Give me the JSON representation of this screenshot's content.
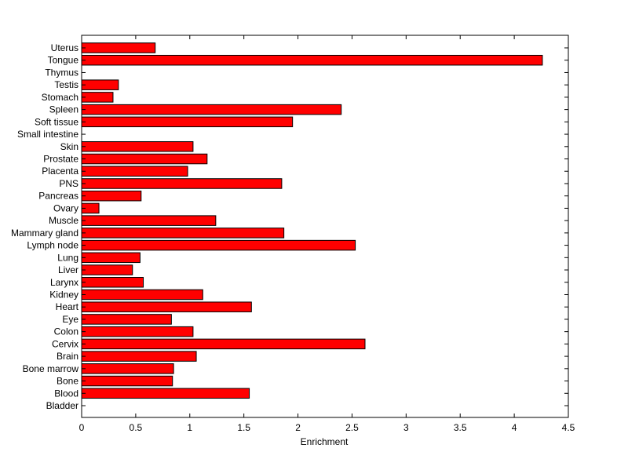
{
  "chart_data": {
    "type": "bar",
    "orientation": "horizontal",
    "title": "",
    "xlabel": "Enrichment",
    "ylabel": "",
    "xlim": [
      0,
      4.5
    ],
    "xticks": [
      0,
      0.5,
      1,
      1.5,
      2,
      2.5,
      3,
      3.5,
      4,
      4.5
    ],
    "grid": false,
    "legend": "none",
    "bar_color": "#ff0000",
    "bar_edge_color": "#000000",
    "categories": [
      "Uterus",
      "Tongue",
      "Thymus",
      "Testis",
      "Stomach",
      "Spleen",
      "Soft tissue",
      "Small intestine",
      "Skin",
      "Prostate",
      "Placenta",
      "PNS",
      "Pancreas",
      "Ovary",
      "Muscle",
      "Mammary gland",
      "Lymph node",
      "Lung",
      "Liver",
      "Larynx",
      "Kidney",
      "Heart",
      "Eye",
      "Colon",
      "Cervix",
      "Brain",
      "Bone marrow",
      "Bone",
      "Blood",
      "Bladder"
    ],
    "values": [
      0.68,
      4.26,
      0,
      0.34,
      0.29,
      2.4,
      1.95,
      0,
      1.03,
      1.16,
      0.98,
      1.85,
      0.55,
      0.16,
      1.24,
      1.87,
      2.53,
      0.54,
      0.47,
      0.57,
      1.12,
      1.57,
      0.83,
      1.03,
      2.62,
      1.06,
      0.85,
      0.84,
      1.55,
      0
    ]
  }
}
